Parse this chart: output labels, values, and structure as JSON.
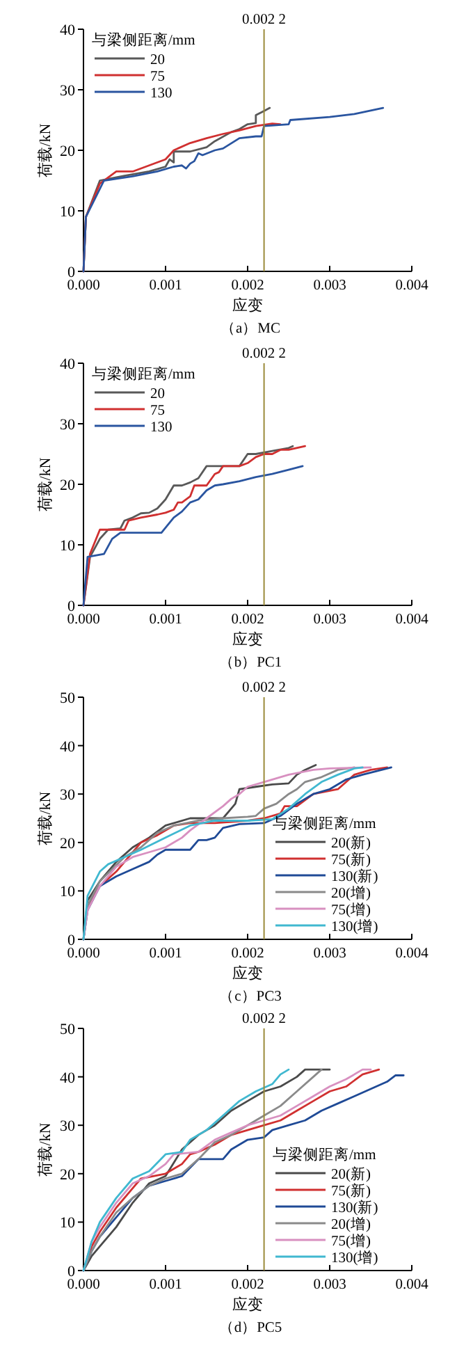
{
  "chart_data": [
    {
      "type": "line",
      "title": "（a）MC",
      "xlabel": "应变",
      "ylabel": "荷载/kN",
      "legend_title": "与梁侧距离/mm",
      "legend": "top left",
      "xlim": [
        0,
        0.004
      ],
      "ylim": [
        0,
        40
      ],
      "xticks": [
        {
          "value": 0,
          "label": "0.000"
        },
        {
          "value": 0.001,
          "label": "0.001"
        },
        {
          "value": 0.002,
          "label": "0.002"
        },
        {
          "value": 0.003,
          "label": "0.003"
        },
        {
          "value": 0.004,
          "label": "0.004"
        }
      ],
      "yticks": [
        0,
        10,
        20,
        30,
        40
      ],
      "ref_lines": [
        {
          "axis": "x",
          "value": 0.0022,
          "label": "0.002 2",
          "color": "#9a8a3a"
        }
      ],
      "series": [
        {
          "name": "20",
          "color": "#595959",
          "x": [
            0,
            3e-05,
            0.0002,
            0.0005,
            0.0008,
            0.001,
            0.00105,
            0.0011,
            0.0011,
            0.0013,
            0.0015,
            0.0016,
            0.0018,
            0.0019,
            0.002,
            0.0021,
            0.0021,
            0.0022,
            0.00227
          ],
          "values": [
            0,
            9,
            15,
            15.8,
            16.5,
            17.3,
            18.5,
            18,
            19.8,
            19.8,
            20.5,
            21.5,
            23,
            23.5,
            24.3,
            24.5,
            25.8,
            26.5,
            27
          ]
        },
        {
          "name": "75",
          "color": "#d03030",
          "x": [
            0,
            3e-05,
            0.0002,
            0.0004,
            0.0006,
            0.0008,
            0.001,
            0.0011,
            0.0013,
            0.0015,
            0.0017,
            0.0019,
            0.0021,
            0.0023,
            0.0024
          ],
          "values": [
            0,
            9,
            14.5,
            16.5,
            16.5,
            17.5,
            18.5,
            20,
            21.2,
            22,
            22.7,
            23.3,
            24,
            24.4,
            24.3
          ]
        },
        {
          "name": "130",
          "color": "#2a55a0",
          "x": [
            0,
            3e-05,
            0.00025,
            0.0006,
            0.0009,
            0.0011,
            0.0012,
            0.00125,
            0.0013,
            0.00135,
            0.0014,
            0.00145,
            0.0016,
            0.0017,
            0.0019,
            0.0021,
            0.00217,
            0.0022,
            0.0025,
            0.00252,
            0.003,
            0.0033,
            0.00365
          ],
          "values": [
            0,
            9,
            15,
            15.7,
            16.5,
            17.3,
            17.5,
            17,
            17.8,
            18.2,
            19.5,
            19.2,
            20,
            20.3,
            22,
            22.3,
            22.3,
            24,
            24.3,
            25,
            25.5,
            26,
            27
          ]
        }
      ]
    },
    {
      "type": "line",
      "title": "（b）PC1",
      "xlabel": "应变",
      "ylabel": "荷载/kN",
      "legend_title": "与梁侧距离/mm",
      "legend": "top left",
      "xlim": [
        0,
        0.004
      ],
      "ylim": [
        0,
        40
      ],
      "xticks": [
        {
          "value": 0,
          "label": "0.000"
        },
        {
          "value": 0.001,
          "label": "0.001"
        },
        {
          "value": 0.002,
          "label": "0.002"
        },
        {
          "value": 0.003,
          "label": "0.003"
        },
        {
          "value": 0.004,
          "label": "0.004"
        }
      ],
      "yticks": [
        0,
        10,
        20,
        30,
        40
      ],
      "ref_lines": [
        {
          "axis": "x",
          "value": 0.0022,
          "label": "0.002 2",
          "color": "#9a8a3a"
        }
      ],
      "series": [
        {
          "name": "20",
          "color": "#595959",
          "x": [
            0,
            8e-05,
            0.0002,
            0.0003,
            0.00045,
            0.0005,
            0.0006,
            0.0007,
            0.0008,
            0.0009,
            0.001,
            0.0011,
            0.0012,
            0.0013,
            0.0014,
            0.0015,
            0.0016,
            0.0017,
            0.0019,
            0.002,
            0.0021,
            0.0023,
            0.0025,
            0.00255
          ],
          "values": [
            0,
            8,
            11,
            12.5,
            12.7,
            14,
            14.5,
            15.2,
            15.3,
            16,
            17.5,
            19.8,
            19.8,
            20.3,
            21,
            23,
            23,
            23,
            23,
            25,
            25,
            25.5,
            26,
            26.3
          ]
        },
        {
          "name": "75",
          "color": "#d03030",
          "x": [
            0,
            8e-05,
            0.0002,
            0.0004,
            0.0005,
            0.00055,
            0.0007,
            0.0009,
            0.001,
            0.0011,
            0.00115,
            0.0012,
            0.0013,
            0.00135,
            0.0015,
            0.0016,
            0.00165,
            0.0017,
            0.0019,
            0.002,
            0.0021,
            0.0022,
            0.0023,
            0.0024,
            0.0025,
            0.0027
          ],
          "values": [
            0,
            8.5,
            12.5,
            12.5,
            12.5,
            14,
            14.5,
            15,
            15.3,
            15.8,
            17,
            17,
            18,
            19.8,
            19.8,
            21.7,
            22,
            23,
            23,
            23.5,
            24.5,
            25,
            25,
            25.7,
            25.7,
            26.3
          ]
        },
        {
          "name": "130",
          "color": "#2a55a0",
          "x": [
            0,
            5e-05,
            0.00025,
            0.00035,
            0.00045,
            0.00095,
            0.0011,
            0.0012,
            0.0013,
            0.0014,
            0.0015,
            0.0016,
            0.0017,
            0.0019,
            0.0021,
            0.0023,
            0.0025,
            0.00267
          ],
          "values": [
            0,
            8,
            8.5,
            11,
            12,
            12,
            14.5,
            15.5,
            17,
            17.5,
            19,
            19.8,
            20,
            20.5,
            21.2,
            21.7,
            22.4,
            23
          ]
        }
      ]
    },
    {
      "type": "line",
      "title": "（c）PC3",
      "xlabel": "应变",
      "ylabel": "荷载/kN",
      "legend_title": "与梁侧距离/mm",
      "legend": "right",
      "xlim": [
        0,
        0.004
      ],
      "ylim": [
        0,
        50
      ],
      "xticks": [
        {
          "value": 0,
          "label": "0.000"
        },
        {
          "value": 0.001,
          "label": "0.001"
        },
        {
          "value": 0.002,
          "label": "0.002"
        },
        {
          "value": 0.003,
          "label": "0.003"
        },
        {
          "value": 0.004,
          "label": "0.004"
        }
      ],
      "yticks": [
        0,
        10,
        20,
        30,
        40,
        50
      ],
      "ref_lines": [
        {
          "axis": "x",
          "value": 0.0022,
          "label": "0.002 2",
          "color": "#9a8a3a"
        }
      ],
      "series": [
        {
          "name": "20(新)",
          "color": "#4a4a4a",
          "x": [
            0,
            5e-05,
            0.0002,
            0.0004,
            0.0006,
            0.0008,
            0.001,
            0.0013,
            0.0015,
            0.0017,
            0.0018,
            0.00185,
            0.0019,
            0.0021,
            0.0023,
            0.0025,
            0.0026,
            0.0027,
            0.00283
          ],
          "values": [
            0,
            8,
            12,
            16,
            19,
            21,
            23.5,
            25,
            25,
            25,
            27,
            28,
            31,
            31.5,
            32,
            32.2,
            34,
            35,
            36
          ]
        },
        {
          "name": "75(新)",
          "color": "#d03030",
          "x": [
            0,
            5e-05,
            0.0002,
            0.0004,
            0.0006,
            0.0007,
            0.0009,
            0.0011,
            0.0013,
            0.0016,
            0.002,
            0.0022,
            0.0024,
            0.00245,
            0.0026,
            0.0028,
            0.0031,
            0.0033,
            0.0035,
            0.0037
          ],
          "values": [
            0,
            7,
            11,
            14,
            18,
            20,
            21.5,
            23.5,
            24,
            24,
            24.5,
            25,
            26,
            27.5,
            27.5,
            30,
            31,
            34,
            35,
            35.5
          ]
        },
        {
          "name": "130(新)",
          "color": "#1f4a96",
          "x": [
            0,
            5e-05,
            0.0002,
            0.0004,
            0.0006,
            0.0008,
            0.0009,
            0.001,
            0.0013,
            0.0014,
            0.0015,
            0.0016,
            0.0017,
            0.0019,
            0.0022,
            0.0024,
            0.0026,
            0.0028,
            0.003,
            0.0032,
            0.0034,
            0.00375
          ],
          "values": [
            0,
            6,
            11,
            13,
            14.5,
            16,
            17.5,
            18.5,
            18.5,
            20.5,
            20.5,
            21,
            23,
            23.8,
            24,
            25.5,
            28,
            30,
            31,
            33,
            34,
            35.5
          ]
        },
        {
          "name": "20(增)",
          "color": "#8a8a8a",
          "x": [
            0,
            5e-05,
            0.0002,
            0.0005,
            0.0007,
            0.0009,
            0.0011,
            0.0014,
            0.0017,
            0.002,
            0.0021,
            0.0022,
            0.00235,
            0.0025,
            0.0026,
            0.0027,
            0.0029,
            0.0031,
            0.0033
          ],
          "values": [
            0,
            7,
            12,
            17,
            19,
            22,
            23.5,
            24.5,
            25,
            25.3,
            25.5,
            27,
            28,
            30,
            31,
            32.5,
            33.5,
            35,
            35.5
          ]
        },
        {
          "name": "75(增)",
          "color": "#d890c0",
          "x": [
            0,
            5e-05,
            0.0002,
            0.0004,
            0.0006,
            0.0008,
            0.001,
            0.0012,
            0.0013,
            0.0015,
            0.0017,
            0.0018,
            0.0019,
            0.002,
            0.0022,
            0.0025,
            0.0028,
            0.003,
            0.0035
          ],
          "values": [
            0,
            6,
            11,
            15,
            17,
            18,
            19,
            21,
            22.5,
            25,
            27.5,
            29,
            30,
            31.5,
            32.5,
            34,
            35,
            35.3,
            35.5
          ]
        },
        {
          "name": "130(增)",
          "color": "#40b8d0",
          "x": [
            0,
            5e-05,
            0.0002,
            0.0003,
            0.0005,
            0.0007,
            0.001,
            0.0013,
            0.0016,
            0.002,
            0.0023,
            0.0025,
            0.0027,
            0.0029,
            0.0031,
            0.0033,
            0.0034
          ],
          "values": [
            0,
            9,
            14,
            15.5,
            17,
            18.5,
            21,
            23.5,
            24.5,
            24.5,
            24.8,
            27,
            30,
            32.5,
            34,
            35.3,
            35.5
          ]
        }
      ]
    },
    {
      "type": "line",
      "title": "（d）PC5",
      "xlabel": "应变",
      "ylabel": "荷载/kN",
      "legend_title": "与梁侧距离/mm",
      "legend": "right",
      "xlim": [
        0,
        0.004
      ],
      "ylim": [
        0,
        50
      ],
      "xticks": [
        {
          "value": 0,
          "label": "0.000"
        },
        {
          "value": 0.001,
          "label": "0.001"
        },
        {
          "value": 0.002,
          "label": "0.002"
        },
        {
          "value": 0.003,
          "label": "0.003"
        },
        {
          "value": 0.004,
          "label": "0.004"
        }
      ],
      "yticks": [
        0,
        10,
        20,
        30,
        40,
        50
      ],
      "ref_lines": [
        {
          "axis": "x",
          "value": 0.0022,
          "label": "0.002 2",
          "color": "#9a8a3a"
        }
      ],
      "series": [
        {
          "name": "20(新)",
          "color": "#4a4a4a",
          "x": [
            0,
            0.0001,
            0.0002,
            0.0004,
            0.0006,
            0.0008,
            0.001,
            0.0012,
            0.0014,
            0.0016,
            0.0018,
            0.002,
            0.0022,
            0.0024,
            0.0026,
            0.0027,
            0.003
          ],
          "values": [
            0,
            3,
            5,
            9,
            14,
            18,
            19.5,
            25,
            28,
            30,
            33,
            35,
            37,
            38,
            40,
            41.5,
            41.5
          ]
        },
        {
          "name": "75(新)",
          "color": "#d03030",
          "x": [
            0,
            0.0001,
            0.0002,
            0.0004,
            0.0006,
            0.0007,
            0.001,
            0.0012,
            0.0013,
            0.0014,
            0.0016,
            0.0018,
            0.002,
            0.0022,
            0.0024,
            0.0026,
            0.0028,
            0.003,
            0.0032,
            0.0034,
            0.0036
          ],
          "values": [
            0,
            5,
            8,
            13,
            17,
            19,
            20,
            22,
            24,
            24.5,
            26,
            28,
            29,
            30,
            31,
            33,
            35,
            37,
            38,
            40.5,
            41.5
          ]
        },
        {
          "name": "130(新)",
          "color": "#1f4a96",
          "x": [
            0,
            0.0001,
            0.0002,
            0.0004,
            0.0006,
            0.0008,
            0.001,
            0.0012,
            0.0014,
            0.0017,
            0.0018,
            0.002,
            0.0022,
            0.0023,
            0.0025,
            0.0027,
            0.0029,
            0.0031,
            0.0033,
            0.0035,
            0.0037,
            0.0038,
            0.0039
          ],
          "values": [
            0,
            4,
            7,
            11,
            15,
            17.5,
            18.5,
            19.5,
            23,
            23,
            25,
            27,
            27.5,
            29,
            30,
            31,
            33,
            34.5,
            36,
            37.5,
            39,
            40.3,
            40.3
          ]
        },
        {
          "name": "20(增)",
          "color": "#8a8a8a",
          "x": [
            0,
            0.0001,
            0.0002,
            0.0004,
            0.0006,
            0.0008,
            0.001,
            0.0012,
            0.0014,
            0.0016,
            0.0018,
            0.002,
            0.0022,
            0.0024,
            0.0026,
            0.0028,
            0.0029
          ],
          "values": [
            0,
            4,
            7,
            12,
            15,
            17.5,
            19,
            20,
            23,
            26.5,
            28,
            30,
            32,
            34,
            37,
            40,
            41.5
          ]
        },
        {
          "name": "75(增)",
          "color": "#d890c0",
          "x": [
            0,
            0.0001,
            0.0002,
            0.0004,
            0.0006,
            0.0008,
            0.001,
            0.0011,
            0.0014,
            0.0016,
            0.0018,
            0.002,
            0.0022,
            0.0024,
            0.0026,
            0.0028,
            0.003,
            0.0032,
            0.0034,
            0.0035
          ],
          "values": [
            0,
            6,
            9,
            14,
            18,
            19.5,
            22,
            24,
            24.5,
            27,
            28.5,
            30,
            31,
            32,
            34,
            36,
            38,
            39.5,
            41.5,
            41.5
          ]
        },
        {
          "name": "130(增)",
          "color": "#40b8d0",
          "x": [
            0,
            0.0001,
            0.0002,
            0.0004,
            0.0006,
            0.0008,
            0.001,
            0.0012,
            0.0013,
            0.0015,
            0.0017,
            0.0019,
            0.0021,
            0.0023,
            0.0024,
            0.0025
          ],
          "values": [
            0,
            6,
            10,
            15,
            19,
            20.5,
            24,
            24.5,
            27,
            29,
            32,
            35,
            37,
            38.5,
            40.5,
            41.5
          ]
        }
      ]
    }
  ]
}
